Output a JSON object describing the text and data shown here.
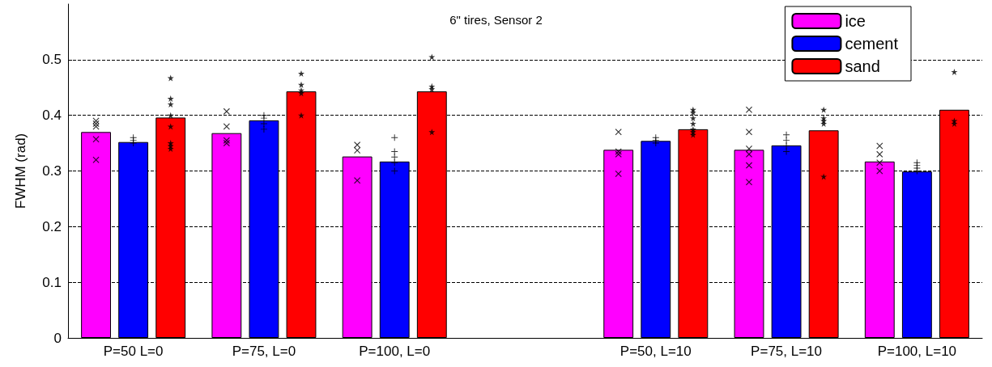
{
  "chart_data": {
    "type": "bar",
    "title": "6\" tires, Sensor 2",
    "ylabel": "FWHM (rad)",
    "categories": [
      "P=50 L=0",
      "P=75, L=0",
      "P=100, L=0",
      null,
      "P=50, L=10",
      "P=75, L=10",
      "P=100, L=10"
    ],
    "series": [
      {
        "name": "ice",
        "color": "#ff00ff",
        "values": [
          0.37,
          0.368,
          0.326,
          null,
          0.338,
          0.338,
          0.317
        ]
      },
      {
        "name": "cement",
        "color": "#0000ff",
        "values": [
          0.352,
          0.391,
          0.317,
          null,
          0.354,
          0.346,
          0.299
        ]
      },
      {
        "name": "sand",
        "color": "#ff0000",
        "values": [
          0.396,
          0.443,
          0.443,
          null,
          0.375,
          0.373,
          0.41
        ]
      },
      {
        "type": "scatter",
        "marker": "cross",
        "color": "#000000",
        "x": [
          "P=50 L=0",
          "P=50 L=0",
          "P=50 L=0",
          "P=50 L=0",
          "P=50 L=0",
          "P=75, L=0",
          "P=75, L=0",
          "P=75, L=0",
          "P=75, L=0",
          "P=100, L=0",
          "P=100, L=0",
          "P=100, L=0",
          "P=50, L=10",
          "P=50, L=10",
          "P=50, L=10",
          "P=50, L=10",
          "P=75, L=10",
          "P=75, L=10",
          "P=75, L=10",
          "P=75, L=10",
          "P=75, L=10",
          "P=75, L=10",
          "P=100, L=10",
          "P=100, L=10",
          "P=100, L=10",
          "P=100, L=10"
        ],
        "values": [
          0.39,
          0.385,
          0.38,
          0.357,
          0.32,
          0.407,
          0.38,
          0.355,
          0.35,
          0.347,
          0.337,
          0.283,
          0.37,
          0.335,
          0.33,
          0.295,
          0.41,
          0.37,
          0.34,
          0.33,
          0.31,
          0.28,
          0.345,
          0.33,
          0.315,
          0.3
        ]
      },
      {
        "type": "scatter",
        "marker": "plus",
        "color": "#000000",
        "x": [
          "P=50 L=0",
          "P=50 L=0",
          "P=50 L=0",
          "P=75, L=0",
          "P=75, L=0",
          "P=75, L=0",
          "P=75, L=0",
          "P=100, L=0",
          "P=100, L=0",
          "P=100, L=0",
          "P=100, L=0",
          "P=100, L=0",
          "P=50, L=10",
          "P=50, L=10",
          "P=50, L=10",
          "P=75, L=10",
          "P=75, L=10",
          "P=75, L=10",
          "P=75, L=10",
          "P=100, L=10",
          "P=100, L=10",
          "P=100, L=10",
          "P=100, L=10"
        ],
        "values": [
          0.36,
          0.355,
          0.35,
          0.4,
          0.395,
          0.385,
          0.375,
          0.36,
          0.335,
          0.325,
          0.315,
          0.3,
          0.36,
          0.355,
          0.35,
          0.365,
          0.355,
          0.345,
          0.335,
          0.315,
          0.31,
          0.305,
          0.3
        ]
      },
      {
        "type": "scatter",
        "marker": "star",
        "color": "#000000",
        "x": [
          "P=50 L=0",
          "P=50 L=0",
          "P=50 L=0",
          "P=50 L=0",
          "P=50 L=0",
          "P=50 L=0",
          "P=50 L=0",
          "P=50 L=0",
          "P=75, L=0",
          "P=75, L=0",
          "P=75, L=0",
          "P=75, L=0",
          "P=75, L=0",
          "P=100, L=0",
          "P=100, L=0",
          "P=100, L=0",
          "P=100, L=0",
          "P=50, L=10",
          "P=50, L=10",
          "P=50, L=10",
          "P=50, L=10",
          "P=50, L=10",
          "P=50, L=10",
          "P=50, L=10",
          "P=75, L=10",
          "P=75, L=10",
          "P=75, L=10",
          "P=75, L=10",
          "P=75, L=10",
          "P=100, L=10",
          "P=100, L=10",
          "P=100, L=10"
        ],
        "values": [
          0.467,
          0.43,
          0.42,
          0.4,
          0.38,
          0.35,
          0.345,
          0.34,
          0.475,
          0.455,
          0.445,
          0.44,
          0.4,
          0.505,
          0.452,
          0.447,
          0.37,
          0.41,
          0.405,
          0.395,
          0.385,
          0.375,
          0.37,
          0.365,
          0.41,
          0.395,
          0.39,
          0.385,
          0.29,
          0.478,
          0.39,
          0.385
        ]
      }
    ],
    "ylim": [
      0,
      0.6
    ],
    "yticks": [
      0,
      0.1,
      0.2,
      0.3,
      0.4,
      0.5
    ],
    "grid": "y",
    "legend": "top right"
  }
}
